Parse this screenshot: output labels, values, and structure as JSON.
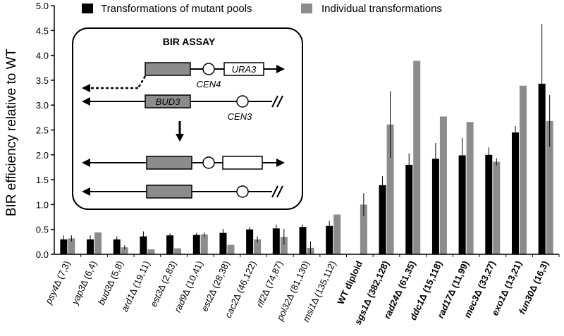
{
  "chart_data": {
    "type": "bar",
    "ylabel": "BIR efficiency relative to WT",
    "ylim": [
      0,
      5
    ],
    "yticks": [
      "0.0",
      "0.5",
      "1.0",
      "1.5",
      "2.0",
      "2.5",
      "3.0",
      "3.5",
      "4.0",
      "4.5",
      "5.0"
    ],
    "legend_position": "top",
    "categories": [
      {
        "gene": "psy4",
        "rest": " (7,3)",
        "bold": false
      },
      {
        "gene": "yap3",
        "rest": " (6,4)",
        "bold": false
      },
      {
        "gene": "bud3",
        "rest": " (5,8)",
        "bold": false
      },
      {
        "gene": "ard1",
        "rest": " (19,11)",
        "bold": false
      },
      {
        "gene": "est3",
        "rest": " (2,83)",
        "bold": false
      },
      {
        "gene": "rad9",
        "rest": " (10,41)",
        "bold": false
      },
      {
        "gene": "est2",
        "rest": " (28,38)",
        "bold": false
      },
      {
        "gene": "cac2",
        "rest": " (46,122)",
        "bold": false
      },
      {
        "gene": "rlf2",
        "rest": " (74,87)",
        "bold": false
      },
      {
        "gene": "pol32",
        "rest": " (81,130)",
        "bold": false
      },
      {
        "gene": "msi1",
        "rest": " (135,112)",
        "bold": false
      },
      {
        "gene": "WT diploid",
        "rest": "",
        "bold": true,
        "plain": true
      },
      {
        "gene": "sgs1",
        "rest": " (382,128)",
        "bold": true
      },
      {
        "gene": "rad24",
        "rest": " (61,35)",
        "bold": true
      },
      {
        "gene": "ddc1",
        "rest": " (15,118)",
        "bold": true
      },
      {
        "gene": "rad17",
        "rest": " (11,99)",
        "bold": true
      },
      {
        "gene": "mec3",
        "rest": " (33,27)",
        "bold": true
      },
      {
        "gene": "exo1",
        "rest": " (13,21)",
        "bold": true
      },
      {
        "gene": "fun30",
        "rest": " (16,3)",
        "bold": true
      }
    ],
    "series": [
      {
        "name": "Transformations of mutant pools",
        "color": "#000000",
        "values": [
          0.3,
          0.3,
          0.3,
          0.36,
          0.38,
          0.39,
          0.43,
          0.5,
          0.52,
          0.55,
          0.57,
          null,
          1.39,
          1.8,
          1.92,
          1.99,
          2.0,
          2.45,
          3.43
        ],
        "errors": [
          0.08,
          0.08,
          0.06,
          0.1,
          0.04,
          0.04,
          0.08,
          0.05,
          0.08,
          0.05,
          0.1,
          null,
          0.18,
          0.23,
          0.32,
          0.35,
          0.15,
          0.13,
          1.2
        ]
      },
      {
        "name": "Individual transformations",
        "color": "#8c8c8c",
        "values": [
          0.32,
          0.44,
          0.14,
          0.1,
          0.12,
          0.4,
          0.19,
          0.3,
          0.35,
          0.13,
          0.8,
          1.0,
          2.61,
          3.89,
          2.77,
          2.66,
          1.86,
          3.39,
          2.68
        ],
        "errors": [
          0.06,
          0.0,
          0.04,
          0.0,
          0.0,
          0.04,
          0.0,
          0.06,
          0.16,
          0.13,
          0.0,
          0.23,
          0.67,
          0.0,
          0.0,
          0.0,
          0.07,
          0.0,
          0.52
        ]
      }
    ]
  },
  "inset": {
    "title": "BIR ASSAY",
    "labels": {
      "ura3": "URA3",
      "cen4": "CEN4",
      "bud3": "BUD3",
      "cen3": "CEN3"
    },
    "colors": {
      "gray_box": "#8c8c8c"
    }
  }
}
